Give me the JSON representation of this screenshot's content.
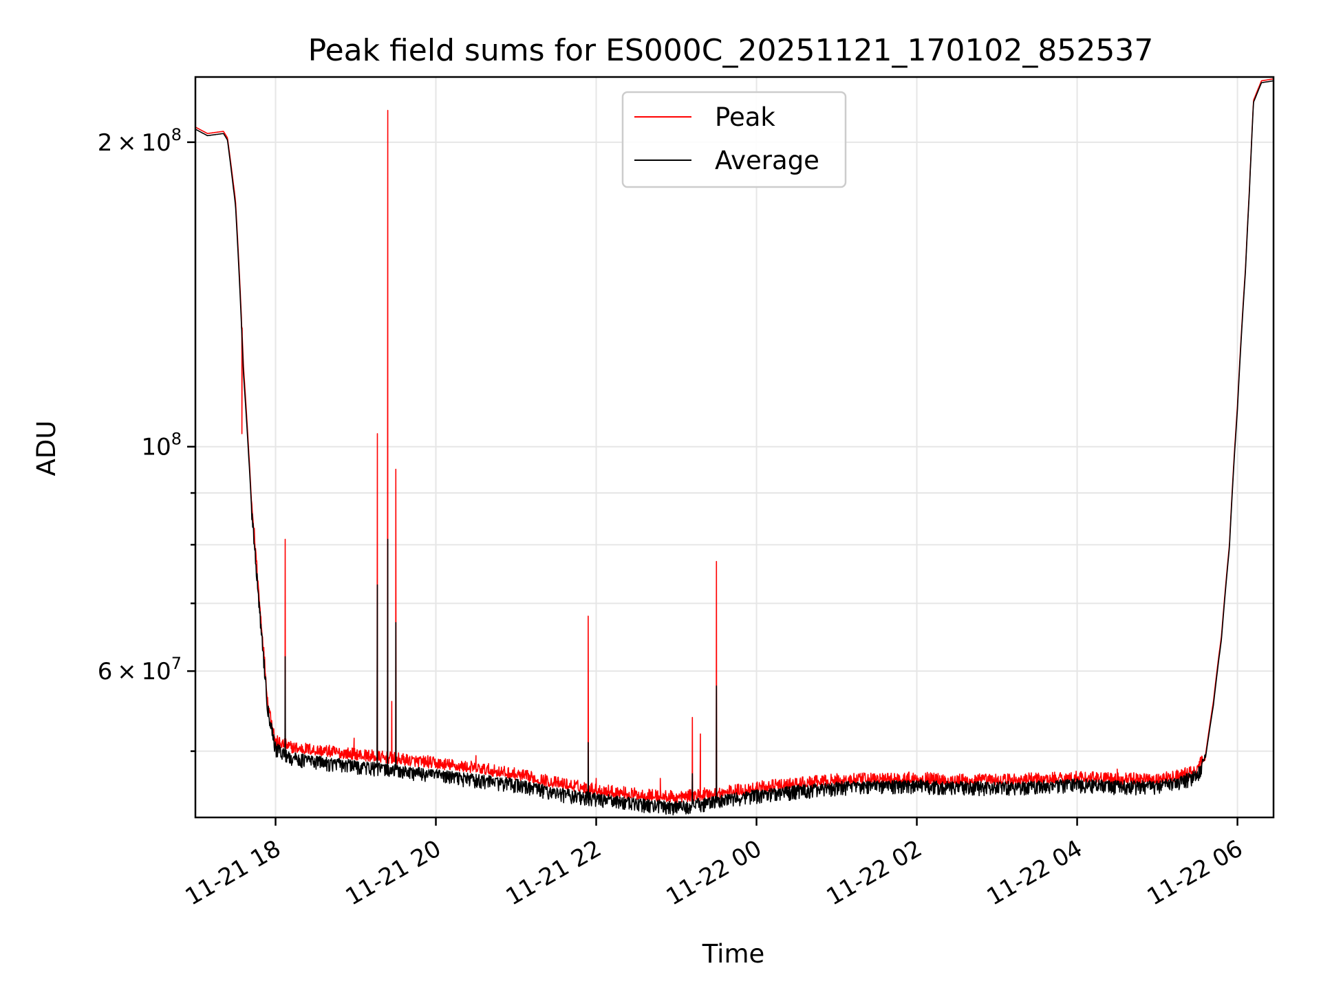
{
  "chart_data": {
    "type": "line",
    "title": "Peak field sums for ES000C_20251121_170102_852537",
    "xlabel": "Time",
    "ylabel": "ADU",
    "yscale": "log",
    "xlim_hours": [
      -1.0,
      12.45
    ],
    "ylim": [
      43000000,
      232000000
    ],
    "x_ticks": [
      {
        "hours": 0,
        "label": "11-21 18"
      },
      {
        "hours": 2,
        "label": "11-21 20"
      },
      {
        "hours": 4,
        "label": "11-21 22"
      },
      {
        "hours": 6,
        "label": "11-22 00"
      },
      {
        "hours": 8,
        "label": "11-22 02"
      },
      {
        "hours": 10,
        "label": "11-22 04"
      },
      {
        "hours": 12,
        "label": "11-22 06"
      }
    ],
    "y_major_ticks": [
      {
        "value": 60000000,
        "mantissa": "6",
        "exponent": "7"
      },
      {
        "value": 100000000,
        "mantissa": "",
        "exponent": "8"
      },
      {
        "value": 200000000,
        "mantissa": "2",
        "exponent": "8"
      }
    ],
    "y_minor_ticks": [
      50000000,
      70000000,
      80000000,
      90000000
    ],
    "legend": {
      "placement": "upper center",
      "entries": [
        "Peak",
        "Average"
      ]
    },
    "series": [
      {
        "name": "Peak",
        "color": "#ff0000",
        "baseline_points": [
          [
            -1.0,
            207000000
          ],
          [
            -0.85,
            204000000
          ],
          [
            -0.65,
            205000000
          ],
          [
            -0.6,
            202000000
          ],
          [
            -0.5,
            175000000
          ],
          [
            -0.4,
            120000000
          ],
          [
            -0.3,
            88000000
          ],
          [
            -0.2,
            70000000
          ],
          [
            -0.1,
            56000000
          ],
          [
            0.0,
            51000000
          ],
          [
            0.2,
            50300000
          ],
          [
            0.5,
            50000000
          ],
          [
            1.0,
            49500000
          ],
          [
            1.5,
            49000000
          ],
          [
            2.0,
            48500000
          ],
          [
            2.5,
            48000000
          ],
          [
            3.0,
            47300000
          ],
          [
            3.5,
            46400000
          ],
          [
            4.0,
            45700000
          ],
          [
            4.5,
            45200000
          ],
          [
            5.0,
            44900000
          ],
          [
            5.5,
            45300000
          ],
          [
            6.0,
            45900000
          ],
          [
            6.5,
            46300000
          ],
          [
            7.0,
            46700000
          ],
          [
            7.5,
            46800000
          ],
          [
            8.0,
            46900000
          ],
          [
            8.5,
            46700000
          ],
          [
            9.0,
            46700000
          ],
          [
            9.5,
            46800000
          ],
          [
            10.0,
            47000000
          ],
          [
            10.5,
            46800000
          ],
          [
            11.0,
            46800000
          ],
          [
            11.3,
            47200000
          ],
          [
            11.5,
            47800000
          ],
          [
            11.6,
            49500000
          ],
          [
            11.7,
            56000000
          ],
          [
            11.8,
            65000000
          ],
          [
            11.9,
            80000000
          ],
          [
            12.0,
            110000000
          ],
          [
            12.1,
            150000000
          ],
          [
            12.15,
            180000000
          ],
          [
            12.2,
            220000000
          ],
          [
            12.3,
            230000000
          ],
          [
            12.45,
            231000000
          ]
        ],
        "spikes": [
          [
            -0.42,
            103000000
          ],
          [
            0.12,
            81000000
          ],
          [
            0.98,
            51500000
          ],
          [
            1.27,
            103000000
          ],
          [
            1.4,
            215000000
          ],
          [
            1.45,
            56000000
          ],
          [
            1.5,
            95000000
          ],
          [
            1.9,
            49500000
          ],
          [
            2.5,
            49500000
          ],
          [
            3.9,
            68000000
          ],
          [
            4.0,
            47000000
          ],
          [
            4.8,
            47000000
          ],
          [
            5.2,
            54000000
          ],
          [
            5.3,
            52000000
          ],
          [
            5.35,
            46000000
          ],
          [
            5.5,
            77000000
          ],
          [
            6.0,
            46500000
          ],
          [
            10.5,
            48000000
          ]
        ]
      },
      {
        "name": "Average",
        "color": "#000000",
        "baseline_points": [
          [
            -1.0,
            206000000
          ],
          [
            -0.85,
            203000000
          ],
          [
            -0.65,
            204000000
          ],
          [
            -0.6,
            201000000
          ],
          [
            -0.5,
            173000000
          ],
          [
            -0.4,
            118000000
          ],
          [
            -0.3,
            87000000
          ],
          [
            -0.2,
            69000000
          ],
          [
            -0.1,
            55500000
          ],
          [
            0.0,
            50500000
          ],
          [
            0.2,
            49400000
          ],
          [
            0.5,
            49000000
          ],
          [
            1.0,
            48500000
          ],
          [
            1.5,
            48000000
          ],
          [
            2.0,
            47500000
          ],
          [
            2.5,
            47000000
          ],
          [
            3.0,
            46500000
          ],
          [
            3.5,
            45600000
          ],
          [
            4.0,
            45000000
          ],
          [
            4.5,
            44500000
          ],
          [
            5.0,
            44200000
          ],
          [
            5.5,
            44700000
          ],
          [
            6.0,
            45400000
          ],
          [
            6.5,
            45800000
          ],
          [
            7.0,
            46200000
          ],
          [
            7.5,
            46300000
          ],
          [
            8.0,
            46400000
          ],
          [
            8.5,
            46200000
          ],
          [
            9.0,
            46200000
          ],
          [
            9.5,
            46300000
          ],
          [
            10.0,
            46500000
          ],
          [
            10.5,
            46300000
          ],
          [
            11.0,
            46300000
          ],
          [
            11.3,
            46800000
          ],
          [
            11.5,
            47500000
          ],
          [
            11.6,
            49200000
          ],
          [
            11.7,
            55500000
          ],
          [
            11.8,
            64500000
          ],
          [
            11.9,
            79500000
          ],
          [
            12.0,
            109000000
          ],
          [
            12.1,
            149000000
          ],
          [
            12.15,
            179000000
          ],
          [
            12.2,
            219000000
          ],
          [
            12.3,
            229000000
          ],
          [
            12.45,
            230000000
          ]
        ],
        "spikes": [
          [
            0.12,
            62000000
          ],
          [
            1.27,
            73000000
          ],
          [
            1.4,
            81000000
          ],
          [
            1.5,
            67000000
          ],
          [
            3.9,
            51000000
          ],
          [
            5.2,
            47500000
          ],
          [
            5.5,
            58000000
          ]
        ]
      }
    ]
  }
}
